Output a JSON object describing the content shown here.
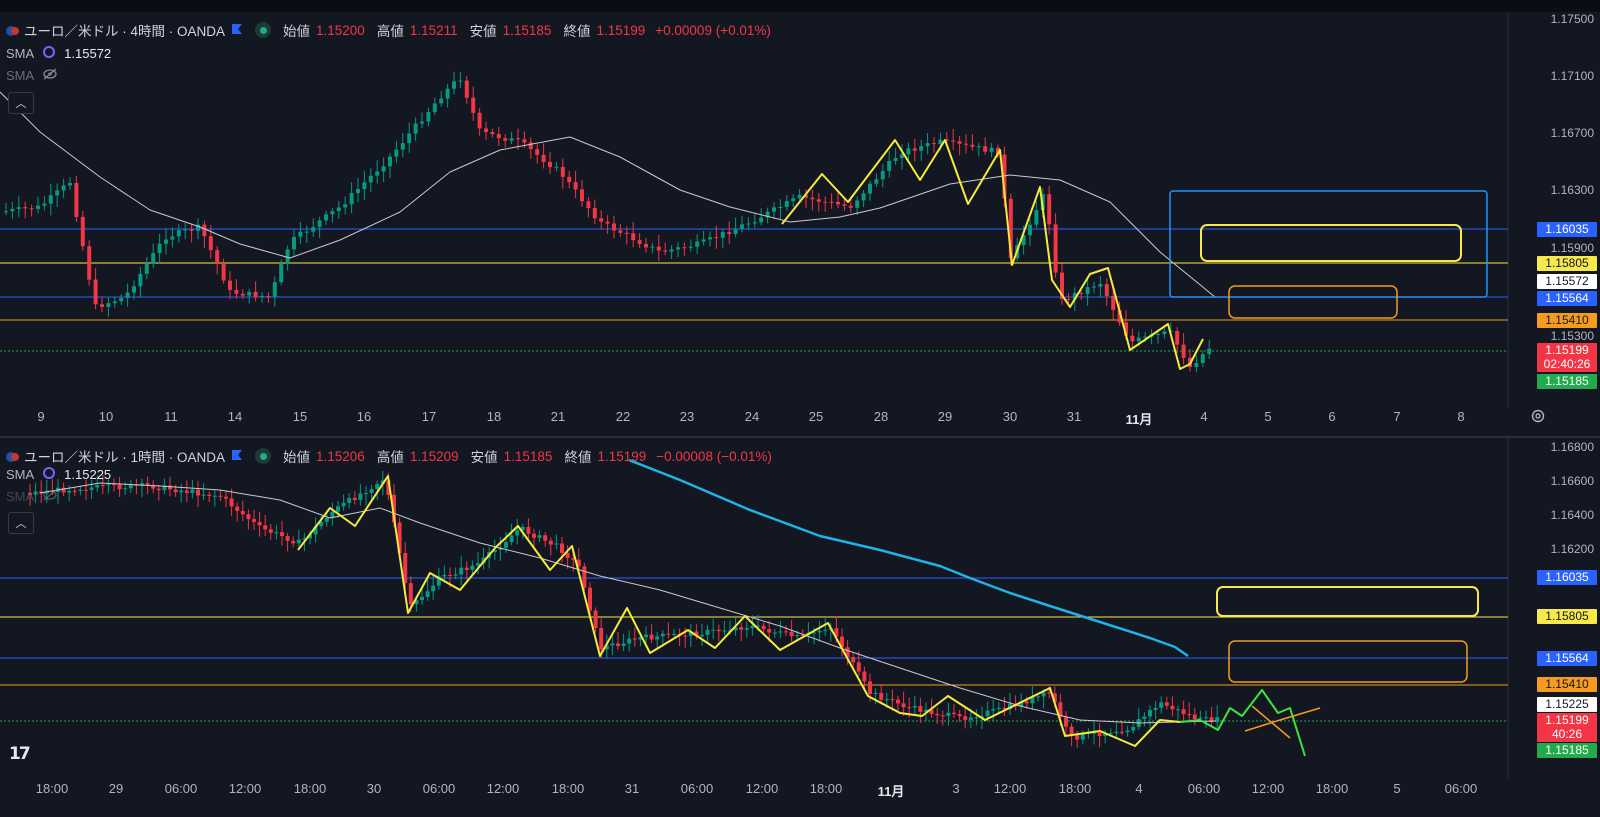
{
  "pane1": {
    "title": "ユーロ／米ドル · 4時間 · OANDA",
    "ohlc": [
      {
        "label": "始値",
        "value": "1.15200"
      },
      {
        "label": "高値",
        "value": "1.15211"
      },
      {
        "label": "安値",
        "value": "1.15185"
      },
      {
        "label": "終値",
        "value": "1.15199"
      }
    ],
    "change": "+0.00009 (+0.01%)",
    "sma1": {
      "label": "SMA",
      "value": "1.15572"
    },
    "sma2": {
      "label": "SMA"
    },
    "price_axis": [
      "1.17500",
      "1.17100",
      "1.16700",
      "1.16300",
      "1.15900",
      "1.15300"
    ],
    "badges": [
      {
        "text": "1.16035",
        "bg": "#2962ff",
        "fg": "#ffffff"
      },
      {
        "text": "1.15805",
        "bg": "#f7e94a",
        "fg": "#131722"
      },
      {
        "text": "1.15572",
        "bg": "#ffffff",
        "fg": "#131722"
      },
      {
        "text": "1.15564",
        "bg": "#2962ff",
        "fg": "#ffffff"
      },
      {
        "text": "1.15410",
        "bg": "#f59b1f",
        "fg": "#131722"
      },
      {
        "text": "1.15199",
        "bg": "#f23645",
        "fg": "#ffffff"
      },
      {
        "text": "02:40:26",
        "bg": "#f23645",
        "fg": "#ffffff"
      },
      {
        "text": "1.15185",
        "bg": "#22ab4c",
        "fg": "#ffffff"
      }
    ],
    "time_axis": [
      "9",
      "10",
      "11",
      "14",
      "15",
      "16",
      "17",
      "18",
      "21",
      "22",
      "23",
      "24",
      "25",
      "28",
      "29",
      "30",
      "31",
      "11月",
      "4",
      "5",
      "6",
      "7",
      "8"
    ]
  },
  "pane2": {
    "title": "ユーロ／米ドル · 1時間 · OANDA",
    "ohlc": [
      {
        "label": "始値",
        "value": "1.15206"
      },
      {
        "label": "高値",
        "value": "1.15209"
      },
      {
        "label": "安値",
        "value": "1.15185"
      },
      {
        "label": "終値",
        "value": "1.15199"
      }
    ],
    "change": "−0.00008 (−0.01%)",
    "sma1": {
      "label": "SMA",
      "value": "1.15225"
    },
    "sma2": {
      "label": "SMA"
    },
    "price_axis": [
      "1.16800",
      "1.16600",
      "1.16400",
      "1.16200"
    ],
    "badges": [
      {
        "text": "1.16035",
        "bg": "#2962ff",
        "fg": "#ffffff"
      },
      {
        "text": "1.15805",
        "bg": "#f7e94a",
        "fg": "#131722"
      },
      {
        "text": "1.15564",
        "bg": "#2962ff",
        "fg": "#ffffff"
      },
      {
        "text": "1.15410",
        "bg": "#f59b1f",
        "fg": "#131722"
      },
      {
        "text": "1.15225",
        "bg": "#ffffff",
        "fg": "#131722"
      },
      {
        "text": "1.15199",
        "bg": "#f23645",
        "fg": "#ffffff"
      },
      {
        "text": "40:26",
        "bg": "#f23645",
        "fg": "#ffffff"
      },
      {
        "text": "1.15185",
        "bg": "#22ab4c",
        "fg": "#ffffff"
      }
    ],
    "time_axis": [
      "18:00",
      "29",
      "06:00",
      "12:00",
      "18:00",
      "30",
      "06:00",
      "12:00",
      "18:00",
      "31",
      "06:00",
      "12:00",
      "18:00",
      "11月",
      "3",
      "12:00",
      "18:00",
      "4",
      "06:00",
      "12:00",
      "18:00",
      "5",
      "06:00"
    ]
  },
  "colors": {
    "bull": "#089981",
    "bear": "#f23645",
    "background": "#131722",
    "support_blue": "#2962ff",
    "level_yellow": "#f7e94a",
    "level_orange": "#f59b1f",
    "zigzag": "#f5eb3a",
    "forecast": "#3ee23e",
    "sma_long": "#1eb4e6"
  }
}
